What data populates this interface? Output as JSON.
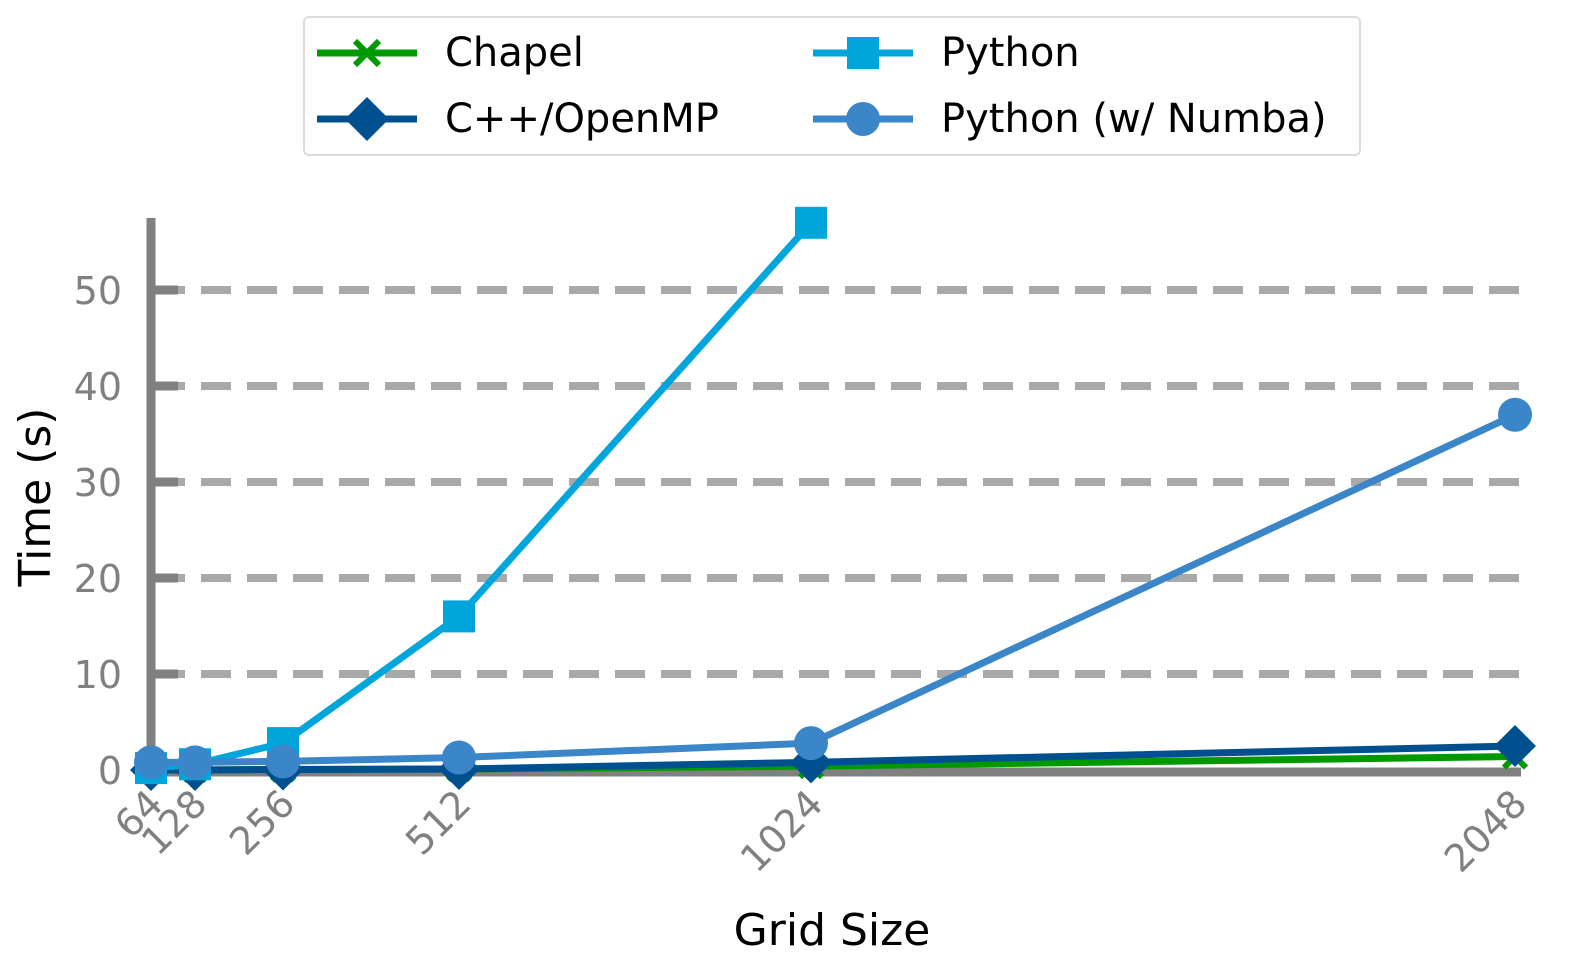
{
  "chart_data": {
    "type": "line",
    "xlabel": "Grid Size",
    "ylabel": "Time (s)",
    "categories": [
      64,
      128,
      256,
      512,
      1024,
      2048
    ],
    "x_tick_labels": [
      "64",
      "128",
      "256",
      "512",
      "1024",
      "2048"
    ],
    "yticks": [
      0,
      10,
      20,
      30,
      40,
      50
    ],
    "y_tick_labels": [
      "0",
      "10",
      "20",
      "30",
      "40",
      "50"
    ],
    "ylim": [
      0,
      57
    ],
    "grid": "horizontal dashed",
    "legend_placement": "top-center",
    "series": [
      {
        "name": "Chapel",
        "marker": "x",
        "color": "#009900",
        "x": [
          64,
          128,
          256,
          512,
          1024,
          2048
        ],
        "values": [
          0.0,
          0.0,
          0.05,
          0.1,
          0.4,
          1.4
        ]
      },
      {
        "name": "C++/OpenMP",
        "marker": "diamond",
        "color": "#00508f",
        "x": [
          64,
          128,
          256,
          512,
          1024,
          2048
        ],
        "values": [
          0.0,
          0.0,
          0.05,
          0.1,
          0.8,
          2.5
        ]
      },
      {
        "name": "Python",
        "marker": "square",
        "color": "#00a5dc",
        "x": [
          64,
          128,
          256,
          512,
          1024
        ],
        "values": [
          0.2,
          0.6,
          2.8,
          16.0,
          57.0
        ]
      },
      {
        "name": "Python (w/ Numba)",
        "marker": "circle",
        "color": "#3a86c8",
        "x": [
          64,
          128,
          256,
          512,
          1024,
          2048
        ],
        "values": [
          0.8,
          0.8,
          0.9,
          1.3,
          2.8,
          37.0
        ]
      }
    ]
  }
}
